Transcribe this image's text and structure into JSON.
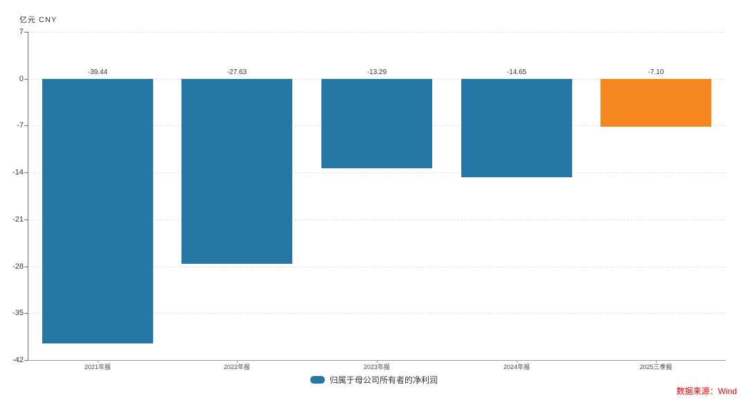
{
  "chart": {
    "unit_label": "亿元 CNY",
    "source_label": "数据来源：Wind",
    "source_color": "#e60000",
    "legend": {
      "label": "归属于母公司所有者的净利润",
      "swatch_color": "#2577a6"
    }
  },
  "chart_data": {
    "type": "bar",
    "title": "",
    "categories": [
      "2021年报",
      "2022年报",
      "2023年报",
      "2024年报",
      "2025三季报"
    ],
    "values": [
      -39.44,
      -27.63,
      -13.29,
      -14.65,
      -7.1
    ],
    "value_labels": [
      "-39.44",
      "-27.63",
      "-13.29",
      "-14.65",
      "-7.10"
    ],
    "series_name": "归属于母公司所有者的净利润",
    "bar_colors": [
      "#2577a6",
      "#2577a6",
      "#2577a6",
      "#2577a6",
      "#f6871e"
    ],
    "xlabel": "",
    "ylabel": "亿元 CNY",
    "yticks": [
      7,
      0,
      -7,
      -14,
      -21,
      -28,
      -35,
      -42
    ],
    "ylim": [
      -42,
      7
    ],
    "grid": "horizontal-dashed",
    "legend_position": "bottom-center"
  }
}
